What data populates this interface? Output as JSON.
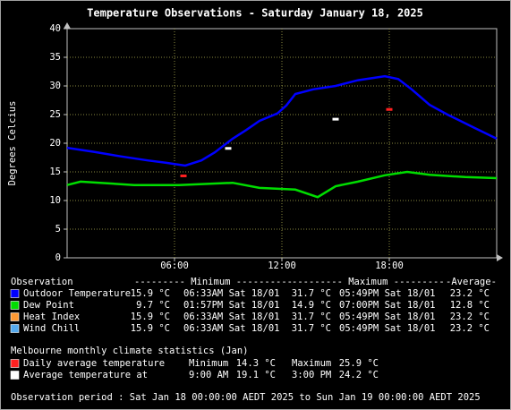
{
  "chart_data": {
    "type": "line",
    "title": "Temperature Observations - Saturday January 18, 2025",
    "ylabel": "Degrees Celcius",
    "xlim": [
      0,
      24
    ],
    "xticks": [
      {
        "value": 6,
        "label": "06:00"
      },
      {
        "value": 12,
        "label": "12:00"
      },
      {
        "value": 18,
        "label": "18:00"
      }
    ],
    "ylim": [
      0,
      40
    ],
    "yticks": [
      0,
      5,
      10,
      15,
      20,
      25,
      30,
      35,
      40
    ],
    "grid": true,
    "series": [
      {
        "name": "Outdoor Temperature",
        "color": "#0000ff",
        "x": [
          0,
          1.5,
          3,
          4.5,
          5.5,
          6.6,
          7.5,
          8.25,
          9.25,
          10,
          10.75,
          11.75,
          12.25,
          12.75,
          13.75,
          15,
          16.25,
          17.75,
          18.5,
          19.25,
          20.25,
          21.25,
          22.75,
          24
        ],
        "values": [
          19.2,
          18.5,
          17.7,
          17,
          16.6,
          16.1,
          17,
          18.4,
          20.8,
          22.3,
          23.9,
          25.2,
          26.6,
          28.6,
          29.4,
          30,
          31,
          31.7,
          31.2,
          29.4,
          26.7,
          25,
          22.7,
          20.8
        ]
      },
      {
        "name": "Dew Point",
        "color": "#00dd00",
        "x": [
          0,
          0.75,
          3.75,
          6.25,
          9.25,
          10.75,
          12.75,
          14,
          15,
          16.25,
          17.75,
          19,
          20.25,
          22.25,
          24
        ],
        "values": [
          12.7,
          13.3,
          12.7,
          12.7,
          13.1,
          12.2,
          11.9,
          10.6,
          12.5,
          13.3,
          14.4,
          15,
          14.5,
          14.1,
          13.9
        ]
      }
    ],
    "markers": [
      {
        "color": "#ff2020",
        "x": [
          6.5,
          18
        ],
        "values": [
          14.3,
          25.9
        ]
      },
      {
        "color": "#ffffff",
        "x": [
          9,
          15
        ],
        "values": [
          19.1,
          24.2
        ]
      }
    ]
  },
  "observations": {
    "header": [
      "Observation",
      "--------- Minimum ----------",
      "--------- Maximum ---------",
      "-Average-"
    ],
    "rows": [
      {
        "name": "Outdoor Temperature",
        "color": "#0000ff",
        "min": "15.9 °C",
        "min_time": "06:33AM Sat 18/01",
        "max": "31.7 °C",
        "max_time": "05:49PM Sat 18/01",
        "avg": "23.2 °C"
      },
      {
        "name": "Dew Point",
        "color": "#00dd00",
        "min": "9.7 °C",
        "min_time": "01:57PM Sat 18/01",
        "max": "14.9 °C",
        "max_time": "07:00PM Sat 18/01",
        "avg": "12.8 °C"
      },
      {
        "name": "Heat Index",
        "color": "#ff9933",
        "min": "15.9 °C",
        "min_time": "06:33AM Sat 18/01",
        "max": "31.7 °C",
        "max_time": "05:49PM Sat 18/01",
        "avg": "23.2 °C"
      },
      {
        "name": "Wind Chill",
        "color": "#55aaee",
        "min": "15.9 °C",
        "min_time": "06:33AM Sat 18/01",
        "max": "31.7 °C",
        "max_time": "05:49PM Sat 18/01",
        "avg": "23.2 °C"
      }
    ]
  },
  "climate": {
    "title": "Melbourne monthly climate statistics (Jan)",
    "rows": [
      {
        "name": "Daily average temperature",
        "color": "#ff2020",
        "a_label": "Minimum",
        "a_value": "14.3 °C",
        "b_label": "Maximum",
        "b_value": "25.9 °C"
      },
      {
        "name": "Average temperature at",
        "color": "#ffffff",
        "a_label": "9:00 AM",
        "a_value": "19.1 °C",
        "b_label": "3:00 PM",
        "b_value": "24.2 °C"
      }
    ]
  },
  "footer": "Observation period : Sat Jan 18 00:00:00 AEDT 2025 to Sun Jan 19 00:00:00 AEDT 2025"
}
